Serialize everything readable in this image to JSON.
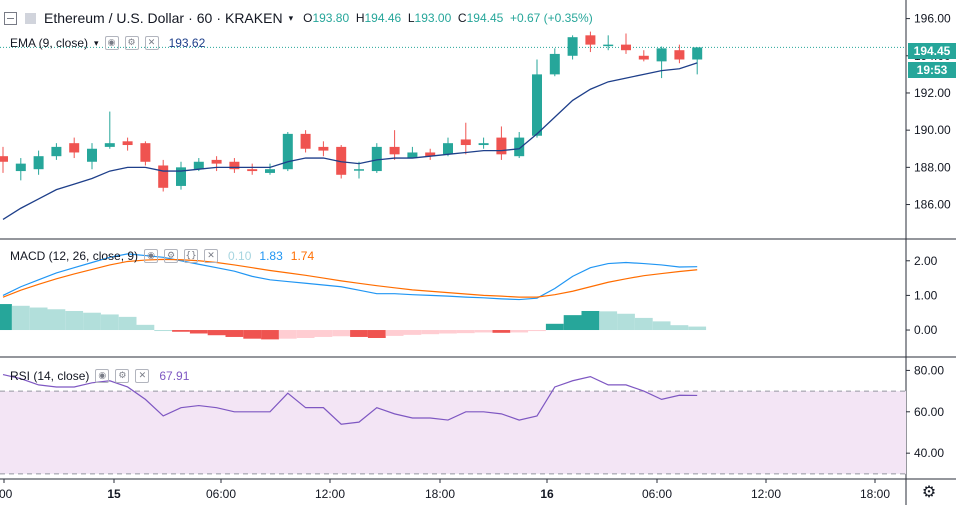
{
  "header": {
    "symbol": "Ethereum / U.S. Dollar",
    "interval": "60",
    "exchange": "KRAKEN",
    "o_label": "O",
    "o_value": "193.80",
    "h_label": "H",
    "h_value": "194.46",
    "l_label": "L",
    "l_value": "193.00",
    "c_label": "C",
    "c_value": "194.45",
    "change": "+0.67 (+0.35%)"
  },
  "ema": {
    "label": "EMA (9, close)",
    "value": "193.62"
  },
  "macd": {
    "label": "MACD (12, 26, close, 9)",
    "hist_value": "0.10",
    "macd_value": "1.83",
    "signal_value": "1.74"
  },
  "rsi": {
    "label": "RSI (14, close)",
    "value": "67.91"
  },
  "price_tags": {
    "last_price": "194.45",
    "countdown": "19:53"
  },
  "colors": {
    "up": "#26a69a",
    "down": "#ef5350",
    "ema": "#1e3f8a",
    "macd": "#2196f3",
    "signal": "#ff6d00",
    "rsi": "#7e57c2",
    "rsi_band": "#f3e5f5"
  },
  "chart_data": [
    {
      "type": "candlestick",
      "title": "Ethereum / U.S. Dollar · 60 · KRAKEN",
      "x_ticks": [
        ":00",
        "15",
        "06:00",
        "12:00",
        "18:00",
        "16",
        "06:00",
        "12:00",
        "18:00"
      ],
      "y_ticks": [
        "186.00",
        "188.00",
        "190.00",
        "192.00",
        "194.00",
        "196.00"
      ],
      "ylim": [
        184.2,
        197.0
      ],
      "candles": [
        [
          188.6,
          188.3,
          189.1,
          187.7
        ],
        [
          187.8,
          188.2,
          188.5,
          187.3
        ],
        [
          187.9,
          188.6,
          188.9,
          187.6
        ],
        [
          188.6,
          189.1,
          189.3,
          188.4
        ],
        [
          189.3,
          188.8,
          189.6,
          188.5
        ],
        [
          188.3,
          189.0,
          189.3,
          187.9
        ],
        [
          189.1,
          189.3,
          191.0,
          189.0
        ],
        [
          189.4,
          189.2,
          189.6,
          188.9
        ],
        [
          189.3,
          188.3,
          189.4,
          188.1
        ],
        [
          188.1,
          186.9,
          188.4,
          186.7
        ],
        [
          187.0,
          188.0,
          188.3,
          186.8
        ],
        [
          187.9,
          188.3,
          188.5,
          187.8
        ],
        [
          188.4,
          188.2,
          188.6,
          187.8
        ],
        [
          188.3,
          187.9,
          188.5,
          187.7
        ],
        [
          187.9,
          187.8,
          188.2,
          187.6
        ],
        [
          187.7,
          187.9,
          188.2,
          187.6
        ],
        [
          187.9,
          189.8,
          189.9,
          187.8
        ],
        [
          189.8,
          189.0,
          190.0,
          188.8
        ],
        [
          189.1,
          188.9,
          189.4,
          188.6
        ],
        [
          189.1,
          187.6,
          189.2,
          187.4
        ],
        [
          187.9,
          187.9,
          188.3,
          187.4
        ],
        [
          187.8,
          189.1,
          189.3,
          187.7
        ],
        [
          189.1,
          188.7,
          190.0,
          188.4
        ],
        [
          188.5,
          188.8,
          189.1,
          188.5
        ],
        [
          188.8,
          188.6,
          189.0,
          188.4
        ],
        [
          188.7,
          189.3,
          189.6,
          188.6
        ],
        [
          189.5,
          189.2,
          190.4,
          188.7
        ],
        [
          189.2,
          189.3,
          189.6,
          189.0
        ],
        [
          189.6,
          188.7,
          190.2,
          188.4
        ],
        [
          188.6,
          189.6,
          189.9,
          188.5
        ],
        [
          189.7,
          193.0,
          193.8,
          189.6
        ],
        [
          193.0,
          194.1,
          194.4,
          192.9
        ],
        [
          194.0,
          195.0,
          195.1,
          193.8
        ],
        [
          195.1,
          194.6,
          195.3,
          194.2
        ],
        [
          194.6,
          194.6,
          195.1,
          194.3
        ],
        [
          194.6,
          194.3,
          195.2,
          194.1
        ],
        [
          194.0,
          193.8,
          194.3,
          193.7
        ],
        [
          193.7,
          194.4,
          194.5,
          192.8
        ],
        [
          194.3,
          193.8,
          194.6,
          193.6
        ],
        [
          193.8,
          194.45,
          194.46,
          193.0
        ]
      ],
      "ema_values": [
        185.2,
        185.8,
        186.3,
        186.8,
        187.1,
        187.4,
        187.8,
        188.0,
        188.0,
        187.8,
        187.8,
        187.9,
        188.0,
        188.0,
        188.0,
        188.0,
        188.3,
        188.5,
        188.5,
        188.3,
        188.2,
        188.4,
        188.5,
        188.5,
        188.6,
        188.7,
        188.8,
        188.9,
        188.9,
        189.0,
        189.8,
        190.7,
        191.6,
        192.2,
        192.6,
        192.8,
        193.0,
        193.2,
        193.3,
        193.62
      ]
    },
    {
      "type": "macd",
      "y_ticks": [
        "0.00",
        "1.00",
        "2.00"
      ],
      "ylim": [
        -0.75,
        2.6
      ],
      "macd": [
        1.0,
        1.25,
        1.45,
        1.65,
        1.8,
        1.95,
        2.1,
        2.2,
        2.15,
        2.1,
        2.0,
        1.9,
        1.8,
        1.7,
        1.55,
        1.45,
        1.4,
        1.35,
        1.3,
        1.25,
        1.15,
        1.05,
        1.05,
        1.02,
        1.0,
        0.98,
        0.95,
        0.93,
        0.9,
        0.88,
        0.92,
        1.2,
        1.55,
        1.8,
        1.92,
        1.95,
        1.92,
        1.88,
        1.82,
        1.83
      ],
      "signal": [
        0.95,
        1.15,
        1.32,
        1.48,
        1.62,
        1.75,
        1.88,
        1.98,
        2.02,
        2.04,
        2.03,
        2.0,
        1.95,
        1.88,
        1.8,
        1.72,
        1.65,
        1.58,
        1.5,
        1.42,
        1.35,
        1.28,
        1.22,
        1.16,
        1.12,
        1.08,
        1.04,
        1.0,
        0.98,
        0.95,
        0.95,
        1.02,
        1.12,
        1.25,
        1.38,
        1.48,
        1.57,
        1.63,
        1.69,
        1.74
      ],
      "histogram": [
        0.75,
        0.7,
        0.65,
        0.6,
        0.55,
        0.5,
        0.45,
        0.38,
        0.15,
        0.0,
        -0.05,
        -0.1,
        -0.15,
        -0.2,
        -0.25,
        -0.27,
        -0.25,
        -0.23,
        -0.2,
        -0.18,
        -0.2,
        -0.23,
        -0.17,
        -0.14,
        -0.12,
        -0.1,
        -0.09,
        -0.07,
        -0.08,
        -0.07,
        -0.03,
        0.18,
        0.43,
        0.55,
        0.54,
        0.47,
        0.35,
        0.25,
        0.14,
        0.1
      ]
    },
    {
      "type": "rsi",
      "y_ticks": [
        "40.00",
        "60.00",
        "80.00"
      ],
      "ylim": [
        28,
        86
      ],
      "band": [
        30,
        70
      ],
      "values": [
        78,
        76,
        73,
        72,
        72,
        74,
        75,
        72,
        66,
        58,
        62,
        63,
        62,
        60,
        60,
        60,
        69,
        62,
        62,
        54,
        55,
        62,
        59,
        57,
        57,
        56,
        60,
        60,
        59,
        56,
        58,
        72,
        75,
        77,
        73,
        73,
        70,
        66,
        68,
        67.91
      ]
    }
  ]
}
